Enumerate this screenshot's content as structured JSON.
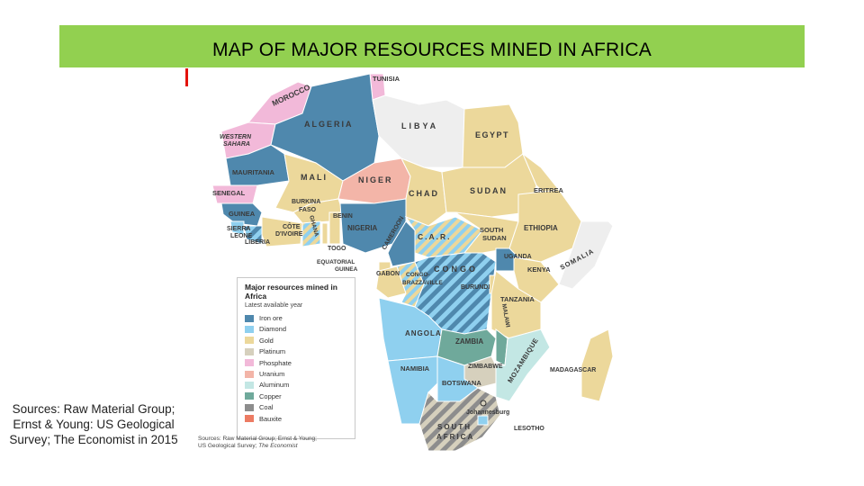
{
  "title": "MAP OF MAJOR RESOURCES MINED IN AFRICA",
  "caption": "Sources: Raw Material Group; Ernst & Young: US Geological Survey; The Economist in 2015",
  "map": {
    "legend": {
      "title": "Major resources mined in Africa",
      "subtitle": "Latest available year",
      "items": [
        {
          "label": "Iron ore",
          "color": "#4f88ad"
        },
        {
          "label": "Diamond",
          "color": "#8fd0ef"
        },
        {
          "label": "Gold",
          "color": "#ecd89b"
        },
        {
          "label": "Platinum",
          "color": "#d6d0bd"
        },
        {
          "label": "Phosphate",
          "color": "#f2b9d9"
        },
        {
          "label": "Uranium",
          "color": "#f3b5a8"
        },
        {
          "label": "Aluminum",
          "color": "#c3e7e4"
        },
        {
          "label": "Copper",
          "color": "#6fa99b"
        },
        {
          "label": "Coal",
          "color": "#8d8d8d"
        },
        {
          "label": "Bauxite",
          "color": "#ec7b63"
        }
      ]
    },
    "sources_line1": "Sources: Raw Material Group; Ernst & Young;",
    "sources_line2": "US Geological Survey;",
    "sources_italic": "The Economist",
    "countries": {
      "morocco": "MOROCCO",
      "tunisia": "TUNISIA",
      "western_sahara_1": "WESTERN",
      "western_sahara_2": "SAHARA",
      "algeria": "ALGERIA",
      "libya": "LIBYA",
      "egypt": "EGYPT",
      "mauritania": "MAURITANIA",
      "mali": "MALI",
      "niger": "NIGER",
      "senegal": "SENEGAL",
      "chad": "CHAD",
      "sudan": "SUDAN",
      "eritrea": "ERITREA",
      "guinea": "GUINEA",
      "burkina_1": "BURKINA",
      "burkina_2": "FASO",
      "benin": "BENIN",
      "nigeria": "NIGERIA",
      "ethiopia": "ETHIOPIA",
      "sierra_leone_1": "SIERRA",
      "sierra_leone_2": "LEONE",
      "liberia": "LIBERIA",
      "cote_1": "CÔTE",
      "cote_2": "D'IVOIRE",
      "ghana": "GHANA",
      "togo": "TOGO",
      "cameroon": "CAMEROON",
      "car": "C.A.R.",
      "south_sudan_1": "SOUTH",
      "south_sudan_2": "SUDAN",
      "somalia": "SOMALIA",
      "eq_guinea_1": "EQUATORIAL",
      "eq_guinea_2": "GUINEA",
      "gabon": "GABON",
      "congo_braz_1": "CONGO-",
      "congo_braz_2": "BRAZZAVILLE",
      "congo": "CONGO",
      "uganda": "UGANDA",
      "kenya": "KENYA",
      "burundi": "BURUNDI",
      "tanzania": "TANZANIA",
      "angola": "ANGOLA",
      "zambia": "ZAMBIA",
      "malawi": "MALAWI",
      "mozambique": "MOZAMBIQUE",
      "namibia": "NAMIBIA",
      "zimbabwe": "ZIMBABWE",
      "botswana": "BOTSWANA",
      "madagascar": "MADAGASCAR",
      "johannesburg": "Johannesburg",
      "south_africa_1": "SOUTH",
      "south_africa_2": "AFRICA",
      "lesotho": "LESOTHO"
    }
  }
}
